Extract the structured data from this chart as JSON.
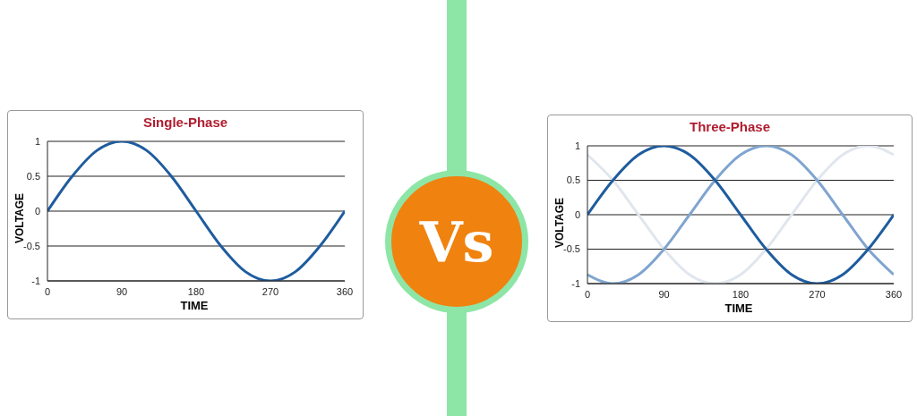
{
  "chart_data": [
    {
      "type": "line",
      "title": "Single-Phase",
      "xlabel": "TIME",
      "ylabel": "VOLTAGE",
      "x": [
        0,
        30,
        60,
        90,
        120,
        150,
        180,
        210,
        240,
        270,
        300,
        330,
        360
      ],
      "series": [
        {
          "color": "#1f5c9e",
          "values": [
            0,
            0.5,
            0.87,
            1,
            0.87,
            0.5,
            0,
            -0.5,
            -0.87,
            -1,
            -0.87,
            -0.5,
            0
          ]
        }
      ],
      "xlim": [
        0,
        360
      ],
      "xticks": [
        0,
        90,
        180,
        270,
        360
      ],
      "ylim": [
        -1,
        1
      ],
      "yticks": [
        -1,
        -0.5,
        0,
        0.5,
        1
      ],
      "grid": "y",
      "legend": false,
      "marker": "none",
      "line_style": "solid"
    },
    {
      "type": "other",
      "title": "Vs"
    },
    {
      "type": "line",
      "title": "Three-Phase",
      "xlabel": "TIME",
      "ylabel": "VOLTAGE",
      "x": [
        0,
        30,
        60,
        90,
        120,
        150,
        180,
        210,
        240,
        270,
        300,
        330,
        360
      ],
      "series": [
        {
          "color": "#e1e6ee",
          "values": [
            0.87,
            0.5,
            0,
            -0.5,
            -0.87,
            -1,
            -0.87,
            -0.5,
            0,
            0.5,
            0.87,
            1,
            0.87
          ]
        },
        {
          "color": "#7fa5cf",
          "values": [
            -0.87,
            -1,
            -0.87,
            -0.5,
            0,
            0.5,
            0.87,
            1,
            0.87,
            0.5,
            0,
            -0.5,
            -0.87
          ]
        },
        {
          "color": "#1f5c9e",
          "values": [
            0,
            0.5,
            0.87,
            1,
            0.87,
            0.5,
            0,
            -0.5,
            -0.87,
            -1,
            -0.87,
            -0.5,
            0
          ]
        }
      ],
      "xlim": [
        0,
        360
      ],
      "xticks": [
        0,
        90,
        180,
        270,
        360
      ],
      "ylim": [
        -1,
        1
      ],
      "yticks": [
        -1,
        -0.5,
        0,
        0.5,
        1
      ],
      "grid": "y",
      "legend": false,
      "marker": "none",
      "line_style": "solid"
    }
  ]
}
